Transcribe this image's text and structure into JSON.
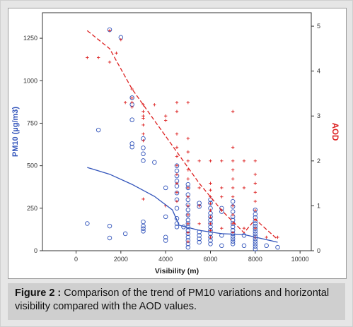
{
  "caption": {
    "label": "Figure 2 :",
    "text": " Comparison of the trend of PM10 variations and horizontal visibility compared with the AOD values."
  },
  "colors": {
    "pm10": "#3355bb",
    "aod": "#dd2222",
    "axis": "#444444"
  },
  "chart_data": {
    "type": "scatter",
    "title": "",
    "xlabel": "Visibility (m)",
    "ylabel_left": "PM10 (µg/m3)",
    "ylabel_right": "AOD",
    "xlim": [
      -1500,
      10500
    ],
    "ylim_left": [
      0,
      1400
    ],
    "ylim_right": [
      0,
      5.3
    ],
    "x_ticks": [
      0,
      2000,
      4000,
      6000,
      8000,
      10000
    ],
    "y_ticks_left": [
      0,
      250,
      500,
      750,
      1000,
      1250
    ],
    "y_ticks_right": [
      0,
      1,
      2,
      3,
      4,
      5
    ],
    "series": [
      {
        "name": "PM10",
        "marker": "circle",
        "axis": "left",
        "points": [
          [
            500,
            160
          ],
          [
            1000,
            710
          ],
          [
            1500,
            1300
          ],
          [
            1500,
            145
          ],
          [
            1500,
            75
          ],
          [
            2000,
            1255
          ],
          [
            2200,
            100
          ],
          [
            2500,
            900
          ],
          [
            2500,
            860
          ],
          [
            2500,
            770
          ],
          [
            2500,
            630
          ],
          [
            2500,
            610
          ],
          [
            3000,
            660
          ],
          [
            3000,
            605
          ],
          [
            3000,
            570
          ],
          [
            3000,
            530
          ],
          [
            3000,
            170
          ],
          [
            3000,
            145
          ],
          [
            3000,
            130
          ],
          [
            3000,
            115
          ],
          [
            3500,
            520
          ],
          [
            4000,
            370
          ],
          [
            4000,
            200
          ],
          [
            4000,
            80
          ],
          [
            4000,
            60
          ],
          [
            4500,
            500
          ],
          [
            4500,
            470
          ],
          [
            4500,
            440
          ],
          [
            4500,
            410
          ],
          [
            4500,
            380
          ],
          [
            4500,
            340
          ],
          [
            4500,
            300
          ],
          [
            4500,
            250
          ],
          [
            4500,
            190
          ],
          [
            4500,
            160
          ],
          [
            4500,
            140
          ],
          [
            4800,
            140
          ],
          [
            5000,
            390
          ],
          [
            5000,
            370
          ],
          [
            5000,
            330
          ],
          [
            5000,
            300
          ],
          [
            5000,
            270
          ],
          [
            5000,
            240
          ],
          [
            5000,
            210
          ],
          [
            5000,
            180
          ],
          [
            5000,
            160
          ],
          [
            5000,
            140
          ],
          [
            5000,
            120
          ],
          [
            5000,
            100
          ],
          [
            5000,
            80
          ],
          [
            5000,
            60
          ],
          [
            5000,
            40
          ],
          [
            5000,
            20
          ],
          [
            5500,
            280
          ],
          [
            5500,
            260
          ],
          [
            5500,
            110
          ],
          [
            5500,
            90
          ],
          [
            5500,
            70
          ],
          [
            5500,
            50
          ],
          [
            6000,
            300
          ],
          [
            6000,
            280
          ],
          [
            6000,
            250
          ],
          [
            6000,
            220
          ],
          [
            6000,
            200
          ],
          [
            6000,
            180
          ],
          [
            6000,
            160
          ],
          [
            6000,
            140
          ],
          [
            6000,
            120
          ],
          [
            6000,
            100
          ],
          [
            6000,
            80
          ],
          [
            6000,
            60
          ],
          [
            6000,
            40
          ],
          [
            6500,
            250
          ],
          [
            6500,
            230
          ],
          [
            6500,
            90
          ],
          [
            6500,
            30
          ],
          [
            7000,
            290
          ],
          [
            7000,
            260
          ],
          [
            7000,
            230
          ],
          [
            7000,
            200
          ],
          [
            7000,
            180
          ],
          [
            7000,
            160
          ],
          [
            7000,
            140
          ],
          [
            7000,
            120
          ],
          [
            7000,
            100
          ],
          [
            7000,
            85
          ],
          [
            7000,
            70
          ],
          [
            7000,
            55
          ],
          [
            7000,
            40
          ],
          [
            7500,
            90
          ],
          [
            7500,
            30
          ],
          [
            8000,
            240
          ],
          [
            8000,
            215
          ],
          [
            8000,
            195
          ],
          [
            8000,
            175
          ],
          [
            8000,
            160
          ],
          [
            8000,
            145
          ],
          [
            8000,
            130
          ],
          [
            8000,
            115
          ],
          [
            8000,
            100
          ],
          [
            8000,
            85
          ],
          [
            8000,
            70
          ],
          [
            8000,
            55
          ],
          [
            8000,
            40
          ],
          [
            8000,
            25
          ],
          [
            8000,
            10
          ],
          [
            8500,
            30
          ],
          [
            9000,
            20
          ]
        ]
      },
      {
        "name": "AOD",
        "marker": "plus",
        "axis": "right",
        "points": [
          [
            500,
            4.3
          ],
          [
            1000,
            4.3
          ],
          [
            1500,
            4.2
          ],
          [
            1500,
            4.9
          ],
          [
            1800,
            4.4
          ],
          [
            2000,
            4.7
          ],
          [
            2200,
            3.3
          ],
          [
            2500,
            3.6
          ],
          [
            2500,
            3.4
          ],
          [
            2500,
            3.2
          ],
          [
            2500,
            3.3
          ],
          [
            3000,
            3.25
          ],
          [
            3000,
            3.1
          ],
          [
            3000,
            3.0
          ],
          [
            3000,
            2.95
          ],
          [
            3000,
            2.8
          ],
          [
            3000,
            2.6
          ],
          [
            3000,
            2.45
          ],
          [
            3000,
            1.15
          ],
          [
            3500,
            3.25
          ],
          [
            4000,
            3.0
          ],
          [
            4000,
            2.9
          ],
          [
            4000,
            1.0
          ],
          [
            4500,
            3.3
          ],
          [
            4500,
            3.1
          ],
          [
            4500,
            2.6
          ],
          [
            4500,
            2.3
          ],
          [
            4500,
            2.1
          ],
          [
            4500,
            1.9
          ],
          [
            4500,
            1.7
          ],
          [
            4500,
            1.5
          ],
          [
            4500,
            1.3
          ],
          [
            4500,
            1.1
          ],
          [
            5000,
            3.3
          ],
          [
            5000,
            2.5
          ],
          [
            5000,
            2.2
          ],
          [
            5000,
            2.0
          ],
          [
            5000,
            1.8
          ],
          [
            5000,
            1.6
          ],
          [
            5000,
            1.4
          ],
          [
            5000,
            1.2
          ],
          [
            5000,
            1.0
          ],
          [
            5000,
            0.8
          ],
          [
            5000,
            0.6
          ],
          [
            5000,
            0.4
          ],
          [
            5000,
            0.2
          ],
          [
            5500,
            2.0
          ],
          [
            5500,
            1.4
          ],
          [
            5500,
            1.0
          ],
          [
            5500,
            0.6
          ],
          [
            6000,
            2.0
          ],
          [
            6000,
            1.5
          ],
          [
            6000,
            1.35
          ],
          [
            6000,
            1.2
          ],
          [
            6000,
            1.05
          ],
          [
            6000,
            0.9
          ],
          [
            6000,
            0.75
          ],
          [
            6000,
            0.6
          ],
          [
            6000,
            0.45
          ],
          [
            6000,
            0.3
          ],
          [
            6500,
            2.0
          ],
          [
            6500,
            1.4
          ],
          [
            6500,
            1.2
          ],
          [
            6500,
            0.9
          ],
          [
            6500,
            0.5
          ],
          [
            7000,
            3.1
          ],
          [
            7000,
            2.3
          ],
          [
            7000,
            2.0
          ],
          [
            7000,
            1.8
          ],
          [
            7000,
            1.6
          ],
          [
            7000,
            1.4
          ],
          [
            7000,
            1.2
          ],
          [
            7000,
            1.0
          ],
          [
            7000,
            0.8
          ],
          [
            7000,
            0.6
          ],
          [
            7000,
            0.4
          ],
          [
            7500,
            2.0
          ],
          [
            7500,
            1.4
          ],
          [
            7500,
            0.5
          ],
          [
            8000,
            2.0
          ],
          [
            8000,
            1.7
          ],
          [
            8000,
            1.5
          ],
          [
            8000,
            1.3
          ],
          [
            8000,
            1.1
          ],
          [
            8000,
            0.9
          ],
          [
            8000,
            0.7
          ],
          [
            8000,
            0.5
          ],
          [
            8000,
            0.3
          ],
          [
            8500,
            0.3
          ],
          [
            9000,
            0.3
          ]
        ]
      },
      {
        "name": "PM10 trend",
        "type": "line",
        "axis": "left",
        "points": [
          [
            500,
            490
          ],
          [
            1500,
            450
          ],
          [
            2500,
            390
          ],
          [
            3500,
            320
          ],
          [
            4300,
            240
          ],
          [
            4600,
            150
          ],
          [
            5500,
            120
          ],
          [
            6500,
            100
          ],
          [
            7500,
            95
          ],
          [
            8000,
            80
          ],
          [
            9000,
            50
          ]
        ]
      },
      {
        "name": "AOD trend",
        "type": "line",
        "style": "dashed",
        "axis": "right",
        "points": [
          [
            500,
            4.9
          ],
          [
            1500,
            4.5
          ],
          [
            2500,
            3.6
          ],
          [
            3500,
            2.9
          ],
          [
            4500,
            2.2
          ],
          [
            5500,
            1.5
          ],
          [
            6500,
            0.9
          ],
          [
            7500,
            0.4
          ],
          [
            8000,
            0.7
          ],
          [
            9000,
            0.25
          ]
        ]
      }
    ]
  }
}
